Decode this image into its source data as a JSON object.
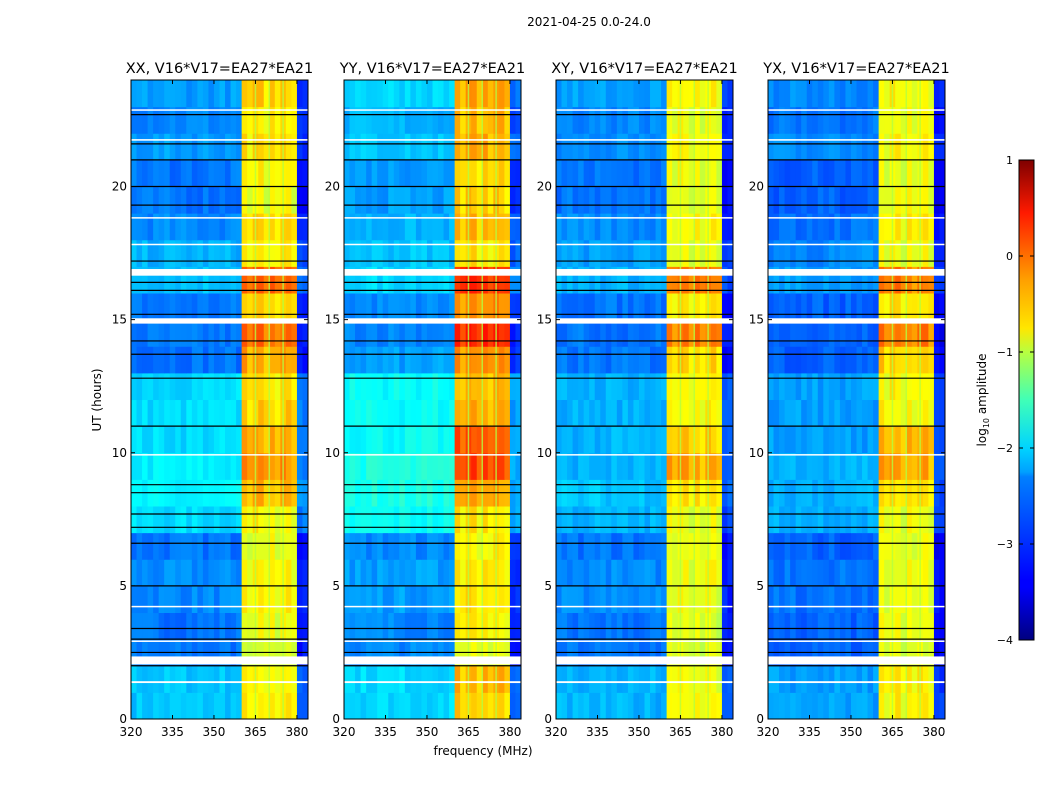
{
  "chart_data": {
    "type": "heatmap",
    "title": "2021-04-25 0.0-24.0",
    "xlabel": "frequency (MHz)",
    "ylabel": "UT (hours)",
    "xlim": [
      320,
      384
    ],
    "ylim": [
      0,
      24
    ],
    "x_ticks": [
      320,
      335,
      350,
      365,
      380
    ],
    "y_ticks": [
      0,
      5,
      10,
      15,
      20
    ],
    "freq_bin_mhz": 2,
    "time_bin_hours": 1,
    "band_mhz": [
      360,
      380
    ],
    "subband_edges_mhz": [
      365,
      370,
      375
    ],
    "colorbar": {
      "label": "log10 amplitude",
      "label_main": "log",
      "label_sub": "10",
      "label_rest": " amplitude",
      "range": [
        -4,
        1
      ],
      "ticks": [
        1,
        0,
        -1,
        -2,
        -3,
        -4
      ],
      "tick_labels": [
        "1",
        "0",
        "−1",
        "−2",
        "−3",
        "−4"
      ],
      "colormap": "jet"
    },
    "flagged_white_hours": [
      [
        1.35,
        1.42
      ],
      [
        2.05,
        2.35
      ],
      [
        2.9,
        2.95
      ],
      [
        4.2,
        4.25
      ],
      [
        9.9,
        9.95
      ],
      [
        14.85,
        15.05
      ],
      [
        16.65,
        16.9
      ],
      [
        17.8,
        17.85
      ],
      [
        18.8,
        18.85
      ],
      [
        21.72,
        21.78
      ],
      [
        22.85,
        22.9
      ]
    ],
    "black_line_hours": [
      2.0,
      2.5,
      3.0,
      3.4,
      5.0,
      6.6,
      7.2,
      7.7,
      8.5,
      8.8,
      11.0,
      12.8,
      13.7,
      14.2,
      15.2,
      16.1,
      16.4,
      17.2,
      19.3,
      20.0,
      21.0,
      21.6,
      22.7
    ],
    "series": [
      {
        "name": "XX, V16*V17=EA27*EA21",
        "band_log_amp_by_hour": [
          -0.8,
          -0.8,
          -1.0,
          -0.9,
          -0.8,
          -0.8,
          -0.9,
          -0.8,
          -0.5,
          -0.3,
          -0.4,
          -0.6,
          -0.7,
          -0.4,
          -0.1,
          -0.6,
          -0.1,
          -0.8,
          -0.6,
          -0.9,
          -0.8,
          -0.7,
          -0.8,
          -0.6
        ],
        "offband_log_amp_by_hour": [
          -2.4,
          -2.4,
          -2.8,
          -2.8,
          -2.7,
          -2.7,
          -2.8,
          -2.3,
          -2.2,
          -2.2,
          -2.3,
          -2.3,
          -2.3,
          -2.8,
          -2.8,
          -2.8,
          -2.4,
          -2.5,
          -2.7,
          -2.8,
          -2.8,
          -2.6,
          -2.7,
          -2.6
        ]
      },
      {
        "name": "YY, V16*V17=EA27*EA21",
        "band_log_amp_by_hour": [
          -0.6,
          -0.5,
          -0.9,
          -0.8,
          -0.7,
          -0.7,
          -0.8,
          -0.7,
          -0.4,
          0.1,
          0.0,
          -0.4,
          -0.5,
          -0.3,
          0.2,
          -0.3,
          0.2,
          -0.7,
          -0.5,
          -0.6,
          -0.6,
          -0.4,
          -0.5,
          -0.4
        ],
        "offband_log_amp_by_hour": [
          -2.3,
          -2.3,
          -2.7,
          -2.7,
          -2.6,
          -2.6,
          -2.7,
          -2.1,
          -2.0,
          -2.0,
          -2.1,
          -2.1,
          -2.1,
          -2.6,
          -2.7,
          -2.7,
          -2.3,
          -2.4,
          -2.5,
          -2.6,
          -2.6,
          -2.4,
          -2.5,
          -2.3
        ]
      },
      {
        "name": "XY, V16*V17=EA27*EA21",
        "band_log_amp_by_hour": [
          -0.8,
          -0.9,
          -1.0,
          -1.0,
          -0.9,
          -0.9,
          -0.9,
          -0.9,
          -0.7,
          -0.4,
          -0.6,
          -0.8,
          -0.8,
          -0.6,
          -0.2,
          -0.7,
          -0.2,
          -0.9,
          -0.8,
          -0.9,
          -0.9,
          -0.8,
          -0.9,
          -0.8
        ],
        "offband_log_amp_by_hour": [
          -2.5,
          -2.5,
          -2.8,
          -2.8,
          -2.7,
          -2.7,
          -2.8,
          -2.5,
          -2.4,
          -2.5,
          -2.5,
          -2.5,
          -2.5,
          -2.8,
          -2.8,
          -2.8,
          -2.5,
          -2.6,
          -2.7,
          -2.8,
          -2.8,
          -2.7,
          -2.7,
          -2.6
        ]
      },
      {
        "name": "YX, V16*V17=EA27*EA21",
        "band_log_amp_by_hour": [
          -0.8,
          -0.8,
          -1.0,
          -0.9,
          -0.9,
          -0.9,
          -0.9,
          -0.9,
          -0.7,
          -0.4,
          -0.5,
          -0.8,
          -0.8,
          -0.6,
          -0.2,
          -0.7,
          -0.2,
          -0.9,
          -0.8,
          -0.9,
          -0.9,
          -0.8,
          -0.9,
          -0.8
        ],
        "offband_log_amp_by_hour": [
          -2.6,
          -2.6,
          -2.9,
          -2.9,
          -2.8,
          -2.8,
          -2.9,
          -2.5,
          -2.5,
          -2.5,
          -2.6,
          -2.6,
          -2.6,
          -2.9,
          -2.9,
          -2.9,
          -2.6,
          -2.7,
          -2.8,
          -2.9,
          -2.9,
          -2.7,
          -2.8,
          -2.7
        ]
      }
    ]
  }
}
